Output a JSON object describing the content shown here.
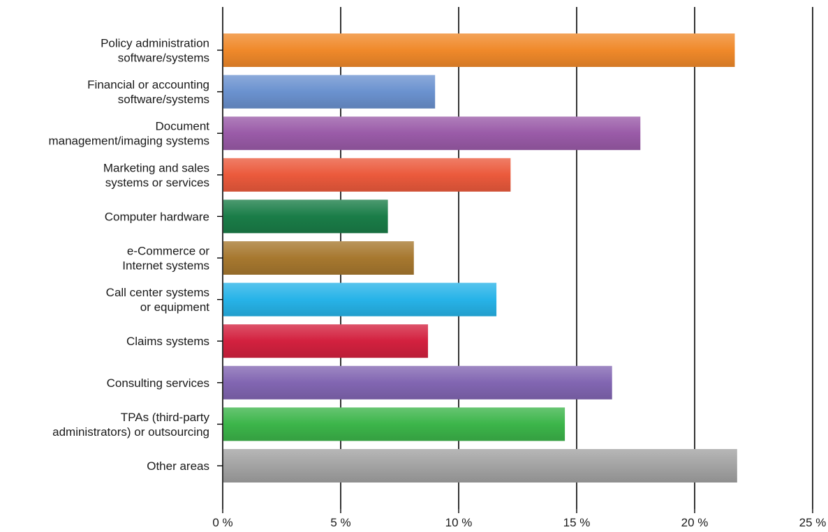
{
  "chart_data": {
    "type": "bar",
    "orientation": "horizontal",
    "categories": [
      [
        "Policy administration",
        "software/systems"
      ],
      [
        "Financial or accounting",
        "software/systems"
      ],
      [
        "Document",
        "management/imaging systems"
      ],
      [
        "Marketing and sales",
        "systems or services"
      ],
      [
        "Computer hardware"
      ],
      [
        "e-Commerce or",
        "Internet systems"
      ],
      [
        "Call center systems",
        "or equipment"
      ],
      [
        "Claims systems"
      ],
      [
        "Consulting services"
      ],
      [
        "TPAs (third-party",
        "administrators) or outsourcing"
      ],
      [
        "Other areas"
      ]
    ],
    "values": [
      21.7,
      9.0,
      17.7,
      12.2,
      7.0,
      8.1,
      11.6,
      8.7,
      16.5,
      14.5,
      21.8
    ],
    "colors": [
      "#f0892a",
      "#6b92cf",
      "#9a5ba8",
      "#eb5a3c",
      "#1a7d48",
      "#a7782f",
      "#27b3e8",
      "#d3213f",
      "#8266b2",
      "#3cb54a",
      "#a3a3a3"
    ],
    "xlim": [
      0,
      25
    ],
    "xticks": [
      0,
      5,
      10,
      15,
      20,
      25
    ],
    "xtick_labels": [
      "0 %",
      "5 %",
      "10 %",
      "15 %",
      "20 %",
      "25 %"
    ],
    "grid": true,
    "title": "",
    "xlabel": "",
    "ylabel": ""
  }
}
